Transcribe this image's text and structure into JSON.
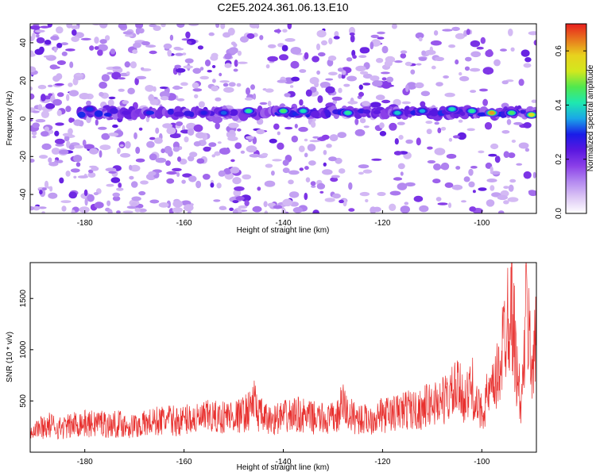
{
  "title": "C2E5.2024.361.06.13.E10",
  "colors": {
    "snr_line": "#e8312f",
    "frame": "#000000",
    "colormap": [
      "#ffffff",
      "#ddc8f5",
      "#b48af0",
      "#8b40e8",
      "#5a17e0",
      "#1a1ce8",
      "#1aa6e8",
      "#1ee8b0",
      "#50e84e",
      "#d2e81e",
      "#e8d21e",
      "#e8781e",
      "#e81e1e"
    ]
  },
  "chart_data": [
    {
      "type": "heatmap",
      "xlabel": "Height of straight line (km)",
      "ylabel": "Frequency (Hz)",
      "xlim": [
        -191,
        -89
      ],
      "ylim": [
        -50,
        50
      ],
      "xticks": [
        -180,
        -160,
        -140,
        -120,
        -100
      ],
      "yticks": [
        -40,
        -20,
        0,
        20,
        40
      ],
      "colorbar": {
        "label": "Normalized spectral amplitude",
        "range": [
          0.0,
          0.7
        ],
        "ticks": [
          "0.0",
          "0.2",
          "0.4",
          "0.6"
        ],
        "tick_values": [
          0.0,
          0.2,
          0.4,
          0.6
        ]
      },
      "band": {
        "frequency": 3,
        "x_range": [
          -181,
          -89
        ],
        "peaks": [
          {
            "x": -179,
            "f": 5,
            "amp": 0.3
          },
          {
            "x": -156,
            "f": 3,
            "amp": 0.28
          },
          {
            "x": -152,
            "f": 3,
            "amp": 0.32
          },
          {
            "x": -147,
            "f": 4,
            "amp": 0.42
          },
          {
            "x": -140,
            "f": 4,
            "amp": 0.45
          },
          {
            "x": -136,
            "f": 4,
            "amp": 0.4
          },
          {
            "x": -127,
            "f": 3,
            "amp": 0.42
          },
          {
            "x": -117,
            "f": 3,
            "amp": 0.38
          },
          {
            "x": -112,
            "f": 4,
            "amp": 0.35
          },
          {
            "x": -106,
            "f": 5,
            "amp": 0.4
          },
          {
            "x": -102,
            "f": 4,
            "amp": 0.42
          },
          {
            "x": -98,
            "f": 3,
            "amp": 0.62
          },
          {
            "x": -94,
            "f": 3,
            "amp": 0.45
          },
          {
            "x": -90,
            "f": 2,
            "amp": 0.55
          }
        ]
      }
    },
    {
      "type": "line",
      "xlabel": "Height of straight line (km)",
      "ylabel": "SNR (10 * v/v)",
      "xlim": [
        -191,
        -89
      ],
      "ylim": [
        0,
        1850
      ],
      "xticks": [
        -180,
        -160,
        -140,
        -120,
        -100
      ],
      "yticks": [
        500,
        1000,
        1500
      ],
      "grid": false,
      "series": [
        {
          "x": [
            -191,
            -189,
            -187,
            -185,
            -183,
            -181,
            -179,
            -177,
            -175,
            -173,
            -171,
            -169,
            -167,
            -165,
            -163,
            -161,
            -159,
            -157,
            -155,
            -153,
            -151,
            -149,
            -147,
            -146,
            -145,
            -143,
            -141,
            -139,
            -137,
            -135,
            -133,
            -131,
            -129,
            -128,
            -127,
            -125,
            -123,
            -121,
            -119,
            -117,
            -115,
            -113,
            -111,
            -109,
            -107,
            -105,
            -104,
            -103,
            -102,
            -101,
            -100,
            -99,
            -98,
            -97,
            -96,
            -95,
            -94,
            -93,
            -92,
            -91,
            -90,
            -89
          ],
          "values": [
            260,
            280,
            300,
            270,
            290,
            330,
            310,
            340,
            300,
            320,
            290,
            300,
            330,
            350,
            360,
            340,
            380,
            360,
            400,
            380,
            410,
            400,
            460,
            580,
            430,
            350,
            380,
            400,
            420,
            390,
            380,
            360,
            400,
            560,
            420,
            380,
            360,
            400,
            420,
            440,
            480,
            460,
            520,
            560,
            600,
            700,
            650,
            600,
            750,
            500,
            450,
            600,
            650,
            800,
            1100,
            1500,
            1800,
            900,
            500,
            1600,
            1000,
            1200
          ]
        }
      ]
    }
  ]
}
